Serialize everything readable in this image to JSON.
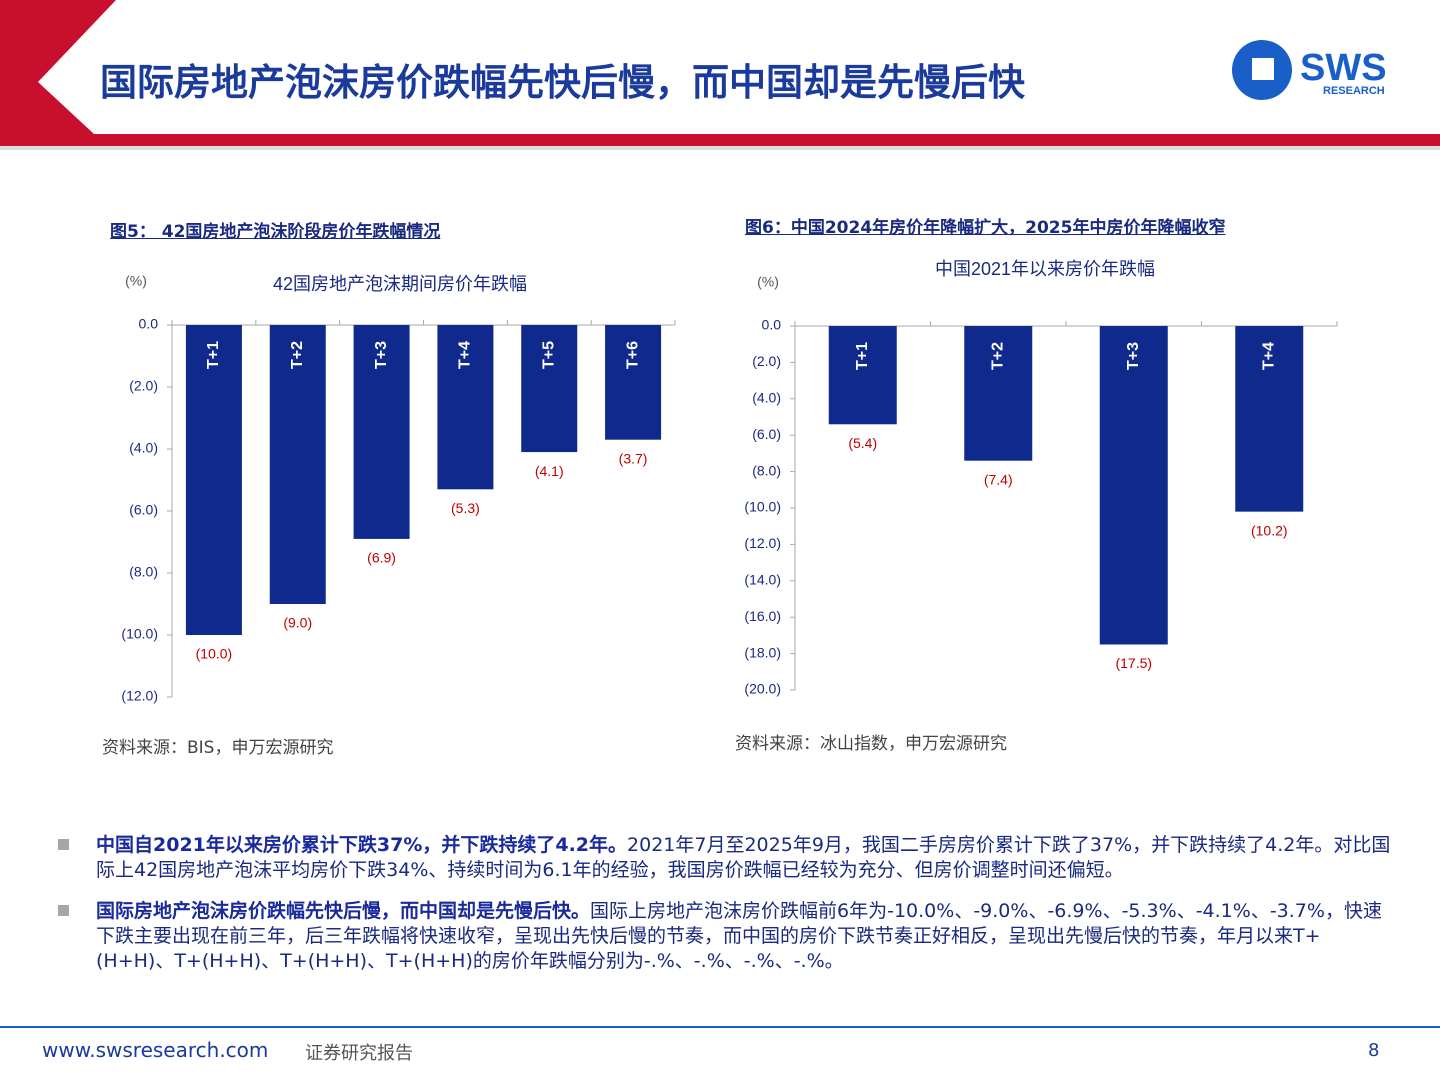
{
  "header": {
    "title": "国际房地产泡沫房价跌幅先快后慢，而中国却是先慢后快",
    "logo_name": "SWS",
    "logo_sub": "RESEARCH"
  },
  "chart_data": [
    {
      "type": "bar",
      "caption": "图5：  42国房地产泡沫阶段房价年跌幅情况",
      "title": "42国房地产泡沫期间房价年跌幅",
      "y_unit": "(%)",
      "categories": [
        "T+1",
        "T+2",
        "T+3",
        "T+4",
        "T+5",
        "T+6"
      ],
      "values": [
        -10.0,
        -9.0,
        -6.9,
        -5.3,
        -4.1,
        -3.7
      ],
      "value_labels": [
        "(10.0)",
        "(9.0)",
        "(6.9)",
        "(5.3)",
        "(4.1)",
        "(3.7)"
      ],
      "color": "#0f2a8c",
      "label_color": "#c00000",
      "ylim": [
        -12,
        0
      ],
      "yticks": [
        {
          "value": 0,
          "label": "0.0"
        },
        {
          "value": -2,
          "label": "(2.0)"
        },
        {
          "value": -4,
          "label": "(4.0)"
        },
        {
          "value": -6,
          "label": "(6.0)"
        },
        {
          "value": -8,
          "label": "(8.0)"
        },
        {
          "value": -10,
          "label": "(10.0)"
        },
        {
          "value": -12,
          "label": "(12.0)"
        }
      ],
      "grid": false,
      "source": "资料来源：BIS，申万宏源研究"
    },
    {
      "type": "bar",
      "caption": "图6：中国2024年房价年降幅扩大，2025年中房价年降幅收窄",
      "title": "中国2021年以来房价年跌幅",
      "y_unit": "(%)",
      "categories": [
        "T+1",
        "T+2",
        "T+3",
        "T+4"
      ],
      "values": [
        -5.4,
        -7.4,
        -17.5,
        -10.2
      ],
      "value_labels": [
        "(5.4)",
        "(7.4)",
        "(17.5)",
        "(10.2)"
      ],
      "color": "#0f2a8c",
      "label_color": "#c00000",
      "ylim": [
        -20,
        0
      ],
      "yticks": [
        {
          "value": 0,
          "label": "0.0"
        },
        {
          "value": -2,
          "label": "(2.0)"
        },
        {
          "value": -4,
          "label": "(4.0)"
        },
        {
          "value": -6,
          "label": "(6.0)"
        },
        {
          "value": -8,
          "label": "(8.0)"
        },
        {
          "value": -10,
          "label": "(10.0)"
        },
        {
          "value": -12,
          "label": "(12.0)"
        },
        {
          "value": -14,
          "label": "(14.0)"
        },
        {
          "value": -16,
          "label": "(16.0)"
        },
        {
          "value": -18,
          "label": "(18.0)"
        },
        {
          "value": -20,
          "label": "(20.0)"
        }
      ],
      "grid": false,
      "source": "资料来源：冰山指数，申万宏源研究"
    }
  ],
  "bullets": [
    {
      "bold": "中国自2021年以来房价累计下跌37%，并下跌持续了4.2年。",
      "text": "2021年7月至2025年9月，我国二手房房价累计下跌了37%，并下跌持续了4.2年。对比国际上42国房地产泡沫平均房价下跌34%、持续时间为6.1年的经验，我国房价跌幅已经较为充分、但房价调整时间还偏短。"
    },
    {
      "bold": "国际房地产泡沫房价跌幅先快后慢，而中国却是先慢后快。",
      "text": "国际上房地产泡沫房价跌幅前6年为-10.0%、-9.0%、-6.9%、-5.3%、-4.1%、-3.7%，快速下跌主要出现在前三年，后三年跌幅将快速收窄，呈现出先快后慢的节奏，而中国的房价下跌节奏正好相反，呈现出先慢后快的节奏，年月以来T+(H+H)、T+(H+H)、T+(H+H)、T+(H+H)的房价年跌幅分别为-.%、-.%、-.%、-.%。"
    }
  ],
  "footer": {
    "url": "www.swsresearch.com",
    "type": "证券研究报告",
    "page": "8"
  }
}
